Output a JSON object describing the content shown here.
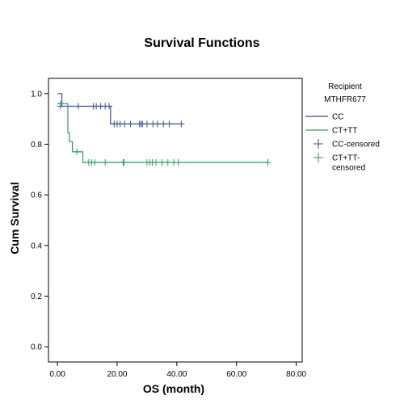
{
  "chart_data": {
    "type": "line",
    "title": "Survival Functions",
    "xlabel": "OS (month)",
    "ylabel": "Cum Survival",
    "xlim": [
      -3,
      82
    ],
    "ylim": [
      -0.06,
      1.06
    ],
    "x_ticks": [
      0,
      20,
      40,
      60,
      80
    ],
    "x_tick_labels": [
      "0.00",
      "20.00",
      "40.00",
      "60.00",
      "80.00"
    ],
    "y_ticks": [
      0.0,
      0.2,
      0.4,
      0.6,
      0.8,
      1.0
    ],
    "y_tick_labels": [
      "0.0",
      "0.2",
      "0.4",
      "0.6",
      "0.8",
      "1.0"
    ],
    "grid": false,
    "legend": {
      "title_lines": [
        "Recipient",
        "MTHFR677"
      ],
      "placement": "right",
      "entries": [
        {
          "label_lines": [
            "CC"
          ],
          "kind": "line",
          "series": 0
        },
        {
          "label_lines": [
            "CT+TT"
          ],
          "kind": "line",
          "series": 1
        },
        {
          "label_lines": [
            "CC-censored"
          ],
          "kind": "marker",
          "series": 0
        },
        {
          "label_lines": [
            "CT+TT-",
            "censored"
          ],
          "kind": "marker",
          "series": 1
        }
      ]
    },
    "series": [
      {
        "name": "CC",
        "color": "#3a4e9c",
        "steps": [
          [
            0,
            1.0
          ],
          [
            1.5,
            1.0
          ],
          [
            1.5,
            0.95
          ],
          [
            17.8,
            0.95
          ],
          [
            17.8,
            0.88
          ],
          [
            41.5,
            0.88
          ]
        ],
        "censored": [
          [
            1,
            0.95
          ],
          [
            7,
            0.95
          ],
          [
            12,
            0.95
          ],
          [
            13,
            0.95
          ],
          [
            14.5,
            0.95
          ],
          [
            16,
            0.95
          ],
          [
            17.3,
            0.95
          ],
          [
            19,
            0.88
          ],
          [
            20,
            0.88
          ],
          [
            21,
            0.88
          ],
          [
            22.5,
            0.88
          ],
          [
            24.5,
            0.88
          ],
          [
            27.5,
            0.88
          ],
          [
            28,
            0.88
          ],
          [
            28.5,
            0.88
          ],
          [
            30,
            0.88
          ],
          [
            32,
            0.88
          ],
          [
            33.5,
            0.88
          ],
          [
            35.5,
            0.88
          ],
          [
            37.5,
            0.88
          ],
          [
            41.5,
            0.88
          ]
        ]
      },
      {
        "name": "CT+TT",
        "color": "#2ca25f",
        "steps": [
          [
            0,
            0.96
          ],
          [
            3.5,
            0.96
          ],
          [
            3.5,
            0.845
          ],
          [
            4,
            0.845
          ],
          [
            4,
            0.81
          ],
          [
            5,
            0.81
          ],
          [
            5,
            0.77
          ],
          [
            8.5,
            0.77
          ],
          [
            8.5,
            0.728
          ],
          [
            71,
            0.728
          ]
        ],
        "censored": [
          [
            1,
            0.96
          ],
          [
            6.5,
            0.77
          ],
          [
            10.5,
            0.728
          ],
          [
            11.5,
            0.728
          ],
          [
            12.5,
            0.728
          ],
          [
            16,
            0.728
          ],
          [
            22,
            0.728
          ],
          [
            22.3,
            0.728
          ],
          [
            30,
            0.728
          ],
          [
            31,
            0.728
          ],
          [
            31.8,
            0.728
          ],
          [
            33,
            0.728
          ],
          [
            35,
            0.728
          ],
          [
            37,
            0.728
          ],
          [
            39,
            0.728
          ],
          [
            40.5,
            0.728
          ],
          [
            70.5,
            0.728
          ]
        ]
      }
    ]
  }
}
